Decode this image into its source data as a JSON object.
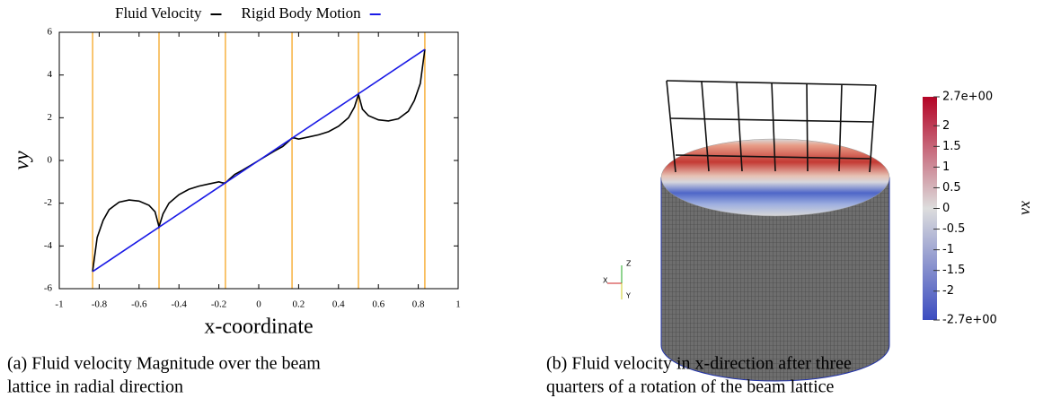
{
  "chart_data": [
    {
      "type": "line",
      "xlabel": "x-coordinate",
      "ylabel": "vy",
      "xlim": [
        -1,
        1
      ],
      "ylim": [
        -6,
        6
      ],
      "xticks": [
        -1,
        -0.8,
        -0.6,
        -0.4,
        -0.2,
        0,
        0.2,
        0.4,
        0.6,
        0.8,
        1
      ],
      "yticks": [
        -6,
        -4,
        -2,
        0,
        2,
        4,
        6
      ],
      "vlines": [
        -0.833,
        -0.5,
        -0.167,
        0.167,
        0.5,
        0.833
      ],
      "vline_color": "#f5a623",
      "legend": "top",
      "series": [
        {
          "name": "Fluid Velocity",
          "color": "#000000",
          "x": [
            -0.833,
            -0.81,
            -0.78,
            -0.75,
            -0.7,
            -0.65,
            -0.6,
            -0.55,
            -0.52,
            -0.5,
            -0.48,
            -0.45,
            -0.4,
            -0.35,
            -0.3,
            -0.25,
            -0.2,
            -0.18,
            -0.167,
            -0.15,
            -0.12,
            -0.08,
            0,
            0.08,
            0.12,
            0.15,
            0.167,
            0.18,
            0.2,
            0.25,
            0.3,
            0.35,
            0.4,
            0.45,
            0.48,
            0.5,
            0.52,
            0.55,
            0.6,
            0.65,
            0.7,
            0.75,
            0.78,
            0.81,
            0.833
          ],
          "values": [
            -5.2,
            -3.6,
            -2.8,
            -2.3,
            -1.95,
            -1.85,
            -1.9,
            -2.1,
            -2.4,
            -3.1,
            -2.5,
            -2.0,
            -1.6,
            -1.35,
            -1.2,
            -1.1,
            -1.0,
            -1.05,
            -1.05,
            -0.9,
            -0.65,
            -0.45,
            0,
            0.45,
            0.65,
            0.9,
            1.05,
            1.05,
            1.0,
            1.1,
            1.2,
            1.35,
            1.6,
            2.0,
            2.5,
            3.1,
            2.4,
            2.1,
            1.9,
            1.85,
            1.95,
            2.3,
            2.8,
            3.6,
            5.2
          ]
        },
        {
          "name": "Rigid Body Motion",
          "color": "#1a1ae6",
          "x": [
            -0.833,
            0.833
          ],
          "values": [
            -5.2,
            5.2
          ]
        }
      ]
    },
    {
      "type": "colorbar",
      "title": "vx",
      "clim": [
        -2.7,
        2.7
      ],
      "colors": [
        "#3b4cc0",
        "#dddddd",
        "#b40426"
      ],
      "cticks": [
        {
          "value": 2.7,
          "label": "2.7e+00"
        },
        2,
        1.5,
        1,
        0.5,
        0,
        -0.5,
        -1,
        -1.5,
        -2,
        {
          "value": -2.7,
          "label": "-2.7e+00"
        }
      ]
    }
  ],
  "orientation_axes": {
    "z": "Z",
    "x": "X",
    "y": "Y"
  },
  "captions": {
    "a": [
      "(a) Fluid velocity Magnitude over the beam",
      "lattice in radial direction"
    ],
    "b": [
      "(b) Fluid velocity in x-direction after three",
      "quarters of a rotation of the beam lattice"
    ]
  }
}
